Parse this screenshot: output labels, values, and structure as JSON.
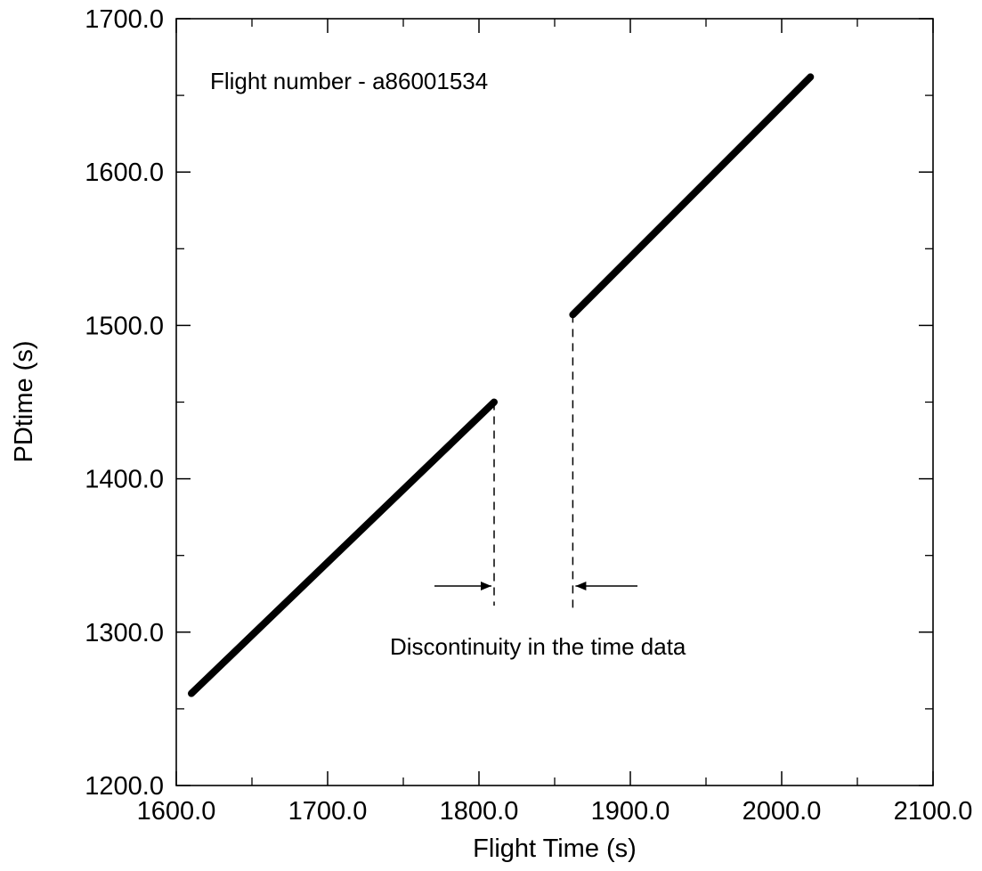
{
  "chart_data": {
    "type": "line",
    "title": "",
    "xlabel": "Flight Time (s)",
    "ylabel": "PDtime (s)",
    "xlim": [
      1600,
      2100
    ],
    "ylim": [
      1200,
      1700
    ],
    "x_ticks": [
      1600,
      1700,
      1800,
      1900,
      2000,
      2100
    ],
    "y_ticks": [
      1200,
      1300,
      1400,
      1500,
      1600,
      1700
    ],
    "x_tick_labels": [
      "1600.0",
      "1700.0",
      "1800.0",
      "1900.0",
      "2000.0",
      "2100.0"
    ],
    "y_tick_labels": [
      "1200.0",
      "1300.0",
      "1400.0",
      "1500.0",
      "1600.0",
      "1700.0"
    ],
    "x_minor_step": 50,
    "y_minor_step": 50,
    "grid": false,
    "legend": "none",
    "series": [
      {
        "segments": [
          {
            "x": [
              1610,
              1810
            ],
            "y": [
              1260,
              1450
            ]
          },
          {
            "x": [
              1862,
              2019
            ],
            "y": [
              1507,
              1662
            ]
          }
        ],
        "color": "#000000"
      }
    ],
    "annotations": [
      {
        "text": "Flight number - a86001534"
      },
      {
        "text": "Discontinuity in the time data"
      }
    ],
    "discontinuity": {
      "x_start": 1810,
      "x_end": 1862
    }
  }
}
